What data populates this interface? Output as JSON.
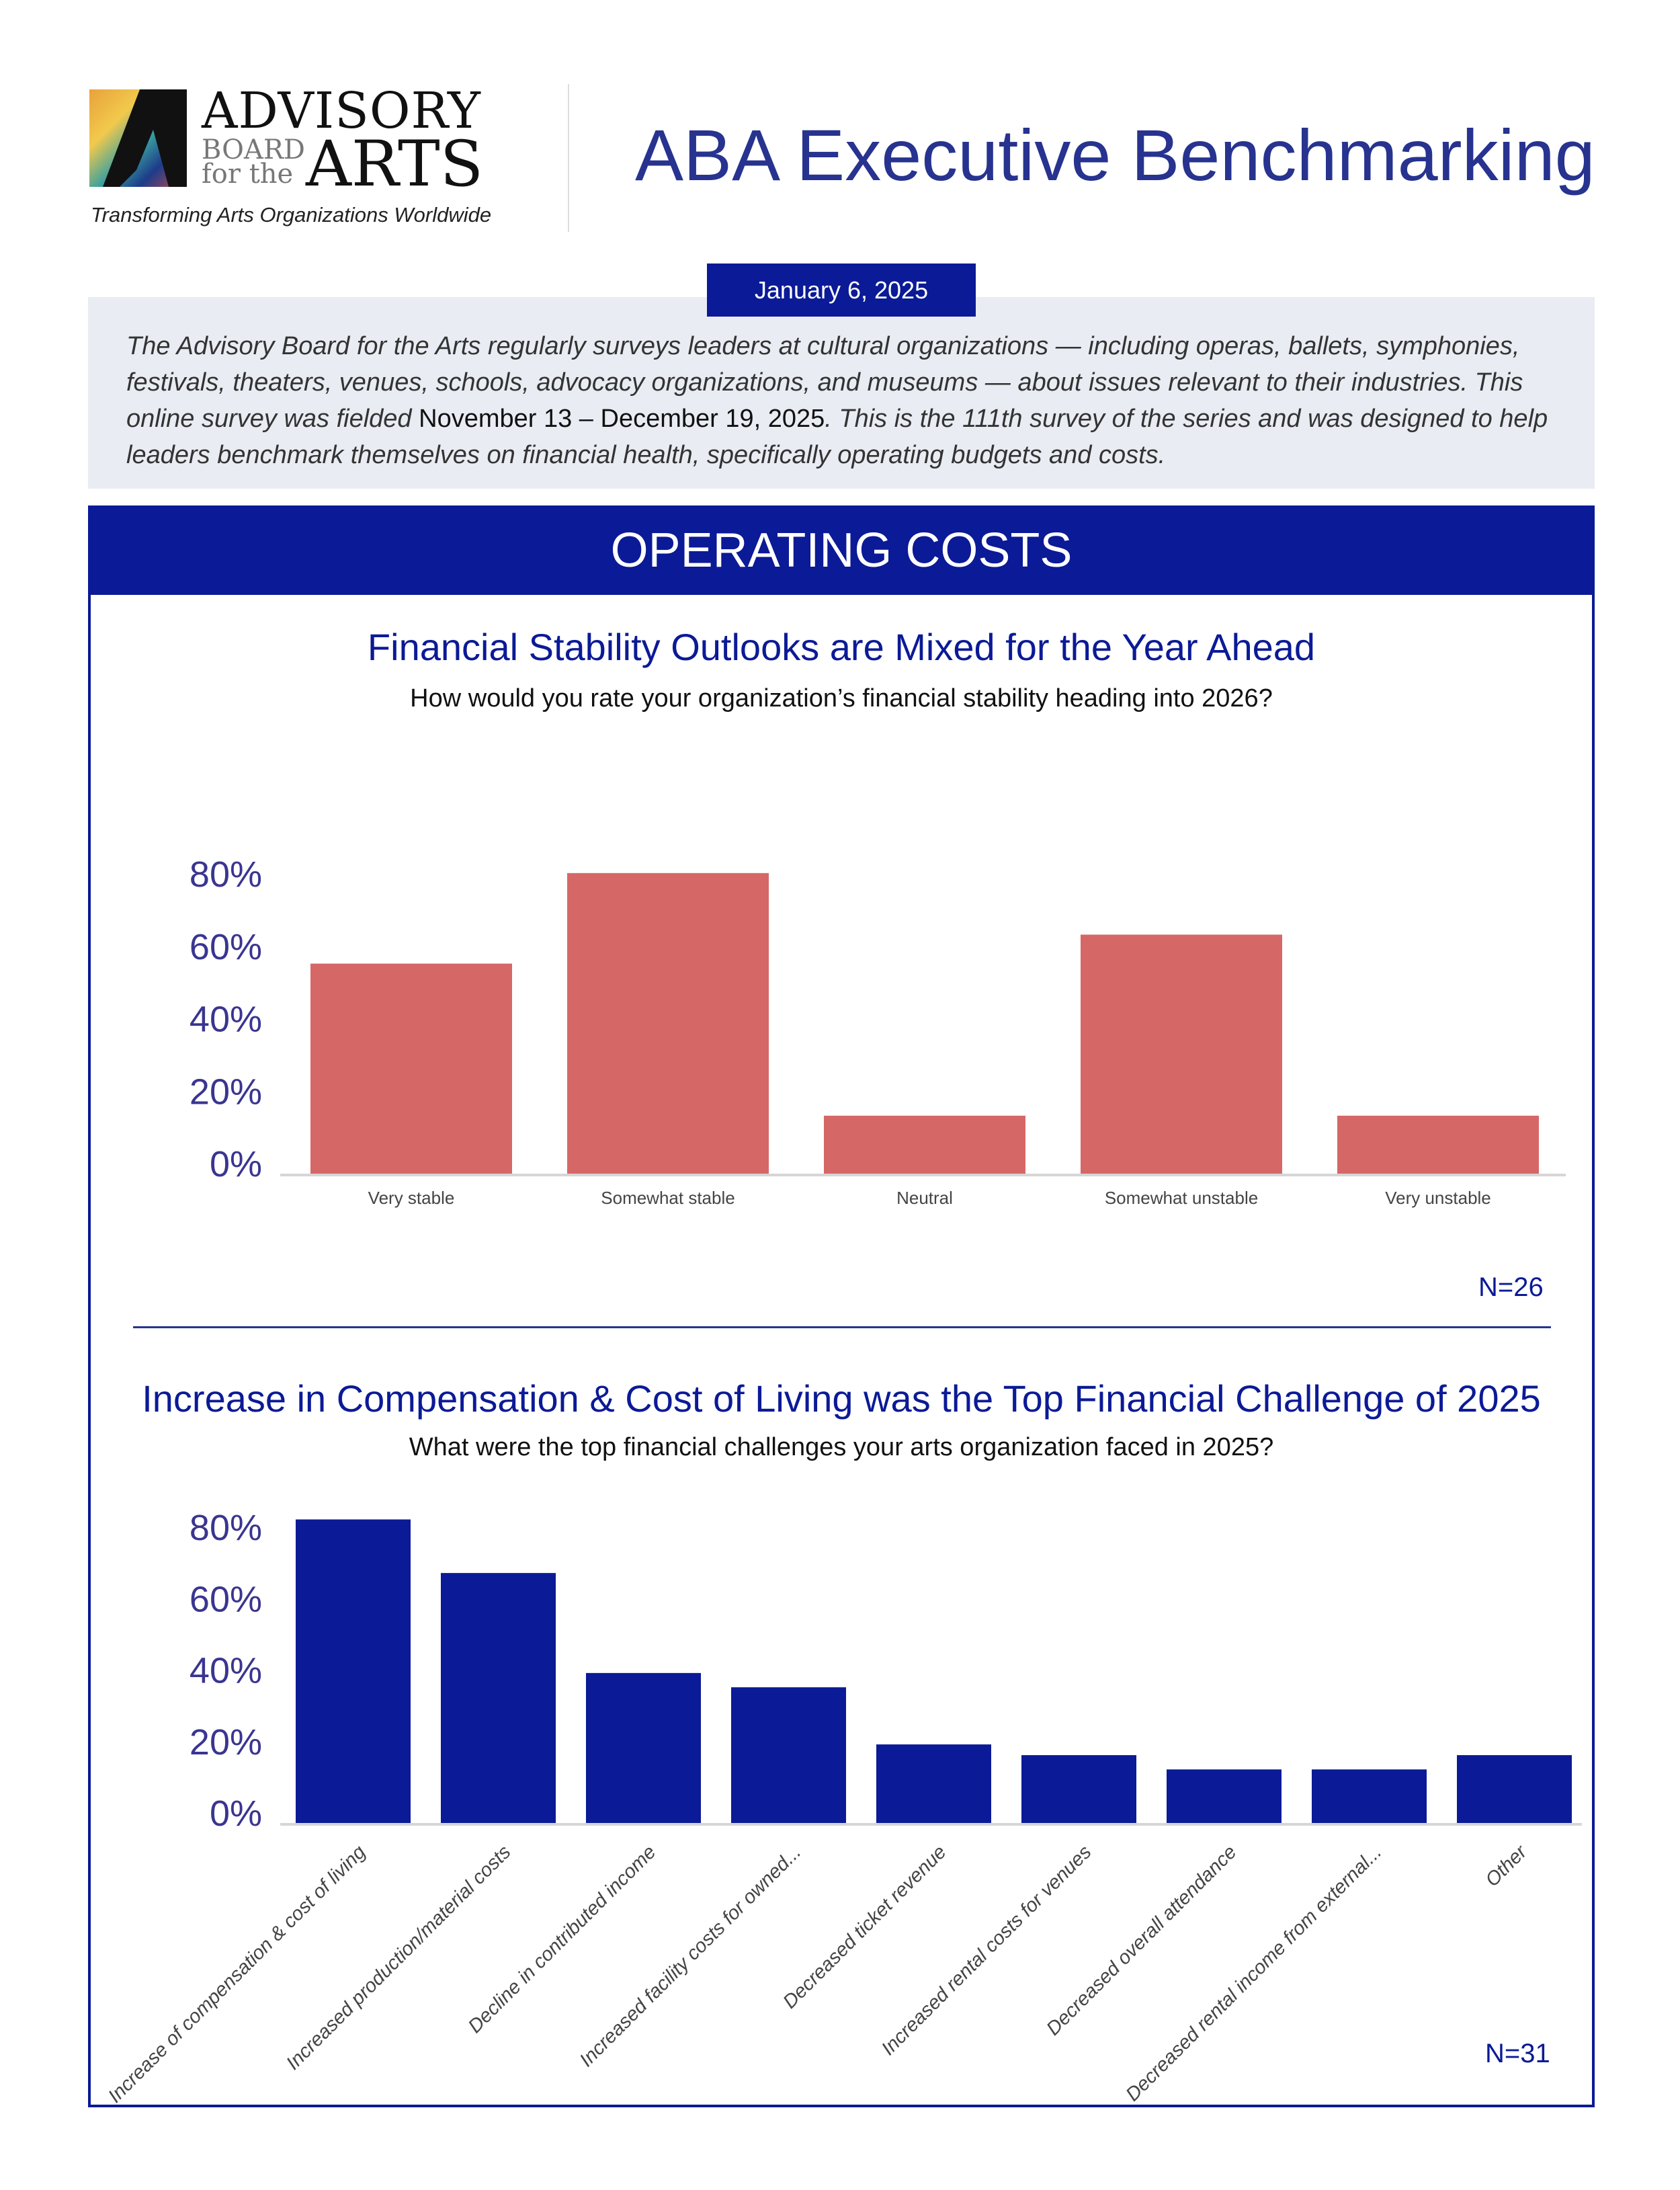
{
  "logo": {
    "line1": "ADVISORY",
    "line2": "BOARD",
    "line3": "for the",
    "line4": "ARTS",
    "tagline": "Transforming Arts Organizations Worldwide"
  },
  "header": {
    "title": "ABA Executive Benchmarking",
    "date": "January 6, 2025"
  },
  "intro": {
    "part1": "The Advisory Board for the Arts regularly surveys leaders at cultural organizations — including operas, ballets, symphonies, festivals, theaters, venues, schools, advocacy organizations, and museums — about issues relevant to their industries. This online survey was fielded ",
    "dates": "November 13 – December 19, 2025",
    "part2": ". This is the 111th survey of the series and was designed to help leaders benchmark themselves on financial health, specifically operating budgets and costs."
  },
  "section": {
    "title": "OPERATING COSTS"
  },
  "colors": {
    "brand": "#0b1a96",
    "bar1": "#d66767",
    "bar2": "#0b1a96",
    "axis_label": "#3a3590"
  },
  "chart_data": [
    {
      "type": "bar",
      "title": "Financial Stability Outlooks are Mixed for the Year Ahead",
      "subtitle": "How would you rate your organization’s financial stability heading into 2026?",
      "categories": [
        "Very stable",
        "Somewhat stable",
        "Neutral",
        "Somewhat unstable",
        "Very unstable"
      ],
      "values": [
        58,
        83,
        16,
        66,
        16
      ],
      "yticks": [
        "0%",
        "20%",
        "40%",
        "60%",
        "80%"
      ],
      "ylim": [
        0,
        80
      ],
      "grid": false,
      "note": "N=26"
    },
    {
      "type": "bar",
      "title": "Increase in Compensation & Cost of Living was the Top Financial Challenge of 2025",
      "subtitle": "What were the top financial challenges your arts organization faced in 2025?",
      "categories": [
        "Increase of compensation & cost of living",
        "Increased production/material costs",
        "Decline in contributed income",
        "Increased facility costs for owned...",
        "Decreased ticket revenue",
        "Increased rental costs for venues",
        "Decreased overall attendance",
        "Decreased rental income from external...",
        "Other"
      ],
      "values": [
        85,
        70,
        42,
        38,
        22,
        19,
        15,
        15,
        19
      ],
      "yticks": [
        "0%",
        "20%",
        "40%",
        "60%",
        "80%"
      ],
      "ylim": [
        0,
        80
      ],
      "grid": false,
      "note": "N=31"
    }
  ]
}
